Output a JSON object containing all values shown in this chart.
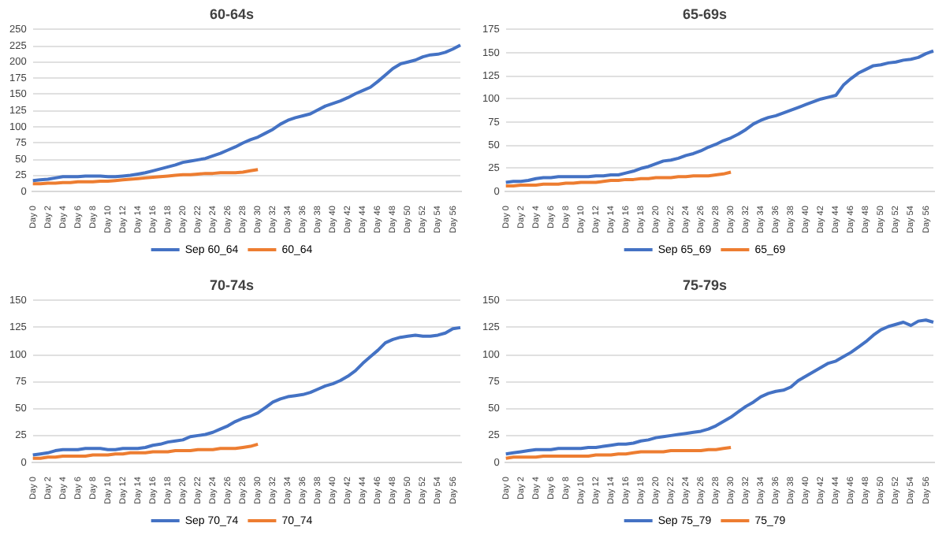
{
  "chart_data": [
    {
      "type": "line",
      "title": "60-64s",
      "categories": [
        "Day 0",
        null,
        "Day 2",
        null,
        "Day 4",
        null,
        "Day 6",
        null,
        "Day 8",
        null,
        "Day 10",
        null,
        "Day 12",
        null,
        "Day 14",
        null,
        "Day 16",
        null,
        "Day 18",
        null,
        "Day 20",
        null,
        "Day 22",
        null,
        "Day 24",
        null,
        "Day 26",
        null,
        "Day 28",
        null,
        "Day 30",
        null,
        "Day 32",
        null,
        "Day 34",
        null,
        "Day 36",
        null,
        "Day 38",
        null,
        "Day 40",
        null,
        "Day 42",
        null,
        "Day 44",
        null,
        "Day 46",
        null,
        "Day 48",
        null,
        "Day 50",
        null,
        "Day 52",
        null,
        "Day 54",
        null,
        "Day 56",
        null
      ],
      "series": [
        {
          "name": "Sep 60_64",
          "color": "#4472c4",
          "values": [
            17,
            18,
            19,
            21,
            23,
            23,
            23,
            24,
            24,
            24,
            23,
            23,
            24,
            25,
            27,
            29,
            32,
            35,
            38,
            41,
            45,
            47,
            49,
            51,
            55,
            59,
            64,
            69,
            75,
            80,
            84,
            90,
            96,
            104,
            110,
            114,
            117,
            120,
            126,
            132,
            136,
            140,
            145,
            151,
            156,
            161,
            170,
            180,
            190,
            197,
            200,
            203,
            208,
            211,
            212,
            215,
            220,
            226
          ]
        },
        {
          "name": "60_64",
          "color": "#ed7d31",
          "values": [
            12,
            12,
            13,
            13,
            14,
            14,
            15,
            15,
            15,
            16,
            16,
            17,
            18,
            19,
            20,
            21,
            22,
            23,
            24,
            25,
            26,
            26,
            27,
            28,
            28,
            29,
            29,
            29,
            30,
            32,
            34,
            null,
            null,
            null,
            null,
            null,
            null,
            null,
            null,
            null,
            null,
            null,
            null,
            null,
            null,
            null,
            null,
            null,
            null,
            null,
            null,
            null,
            null,
            null,
            null,
            null,
            null,
            null
          ]
        }
      ],
      "ylim": [
        0,
        250
      ],
      "yticks": [
        0,
        25,
        50,
        75,
        100,
        125,
        150,
        175,
        200,
        225,
        250
      ],
      "grid": "y",
      "legend": "bottom",
      "marker": "none"
    },
    {
      "type": "line",
      "title": "65-69s",
      "categories": [
        "Day 0",
        null,
        "Day 2",
        null,
        "Day 4",
        null,
        "Day 6",
        null,
        "Day 8",
        null,
        "Day 10",
        null,
        "Day 12",
        null,
        "Day 14",
        null,
        "Day 16",
        null,
        "Day 18",
        null,
        "Day 20",
        null,
        "Day 22",
        null,
        "Day 24",
        null,
        "Day 26",
        null,
        "Day 28",
        null,
        "Day 30",
        null,
        "Day 32",
        null,
        "Day 34",
        null,
        "Day 36",
        null,
        "Day 38",
        null,
        "Day 40",
        null,
        "Day 42",
        null,
        "Day 44",
        null,
        "Day 46",
        null,
        "Day 48",
        null,
        "Day 50",
        null,
        "Day 52",
        null,
        "Day 54",
        null,
        "Day 56",
        null
      ],
      "series": [
        {
          "name": "Sep 65_69",
          "color": "#4472c4",
          "values": [
            10,
            11,
            11,
            12,
            14,
            15,
            15,
            16,
            16,
            16,
            16,
            16,
            17,
            17,
            18,
            18,
            20,
            22,
            25,
            27,
            30,
            33,
            34,
            36,
            39,
            41,
            44,
            48,
            51,
            55,
            58,
            62,
            67,
            73,
            77,
            80,
            82,
            85,
            88,
            91,
            94,
            97,
            100,
            102,
            104,
            115,
            122,
            128,
            132,
            136,
            137,
            139,
            140,
            142,
            143,
            145,
            149,
            152
          ]
        },
        {
          "name": "65_69",
          "color": "#ed7d31",
          "values": [
            6,
            6,
            7,
            7,
            7,
            8,
            8,
            8,
            9,
            9,
            10,
            10,
            10,
            11,
            12,
            12,
            13,
            13,
            14,
            14,
            15,
            15,
            15,
            16,
            16,
            17,
            17,
            17,
            18,
            19,
            21,
            null,
            null,
            null,
            null,
            null,
            null,
            null,
            null,
            null,
            null,
            null,
            null,
            null,
            null,
            null,
            null,
            null,
            null,
            null,
            null,
            null,
            null,
            null,
            null,
            null,
            null,
            null
          ]
        }
      ],
      "ylim": [
        0,
        175
      ],
      "yticks": [
        0,
        25,
        50,
        75,
        100,
        125,
        150,
        175
      ],
      "grid": "y",
      "legend": "bottom",
      "marker": "none"
    },
    {
      "type": "line",
      "title": "70-74s",
      "categories": [
        "Day 0",
        null,
        "Day 2",
        null,
        "Day 4",
        null,
        "Day 6",
        null,
        "Day 8",
        null,
        "Day 10",
        null,
        "Day 12",
        null,
        "Day 14",
        null,
        "Day 16",
        null,
        "Day 18",
        null,
        "Day 20",
        null,
        "Day 22",
        null,
        "Day 24",
        null,
        "Day 26",
        null,
        "Day 28",
        null,
        "Day 30",
        null,
        "Day 32",
        null,
        "Day 34",
        null,
        "Day 36",
        null,
        "Day 38",
        null,
        "Day 40",
        null,
        "Day 42",
        null,
        "Day 44",
        null,
        "Day 46",
        null,
        "Day 48",
        null,
        "Day 50",
        null,
        "Day 52",
        null,
        "Day 54",
        null,
        "Day 56",
        null
      ],
      "series": [
        {
          "name": "Sep 70_74",
          "color": "#4472c4",
          "values": [
            7,
            8,
            9,
            11,
            12,
            12,
            12,
            13,
            13,
            13,
            12,
            12,
            13,
            13,
            13,
            14,
            16,
            17,
            19,
            20,
            21,
            24,
            25,
            26,
            28,
            31,
            34,
            38,
            41,
            43,
            46,
            51,
            56,
            59,
            61,
            62,
            63,
            65,
            68,
            71,
            73,
            76,
            80,
            85,
            92,
            98,
            104,
            111,
            114,
            116,
            117,
            118,
            117,
            117,
            118,
            120,
            124,
            125
          ]
        },
        {
          "name": "70_74",
          "color": "#ed7d31",
          "values": [
            4,
            4,
            5,
            5,
            6,
            6,
            6,
            6,
            7,
            7,
            7,
            8,
            8,
            9,
            9,
            9,
            10,
            10,
            10,
            11,
            11,
            11,
            12,
            12,
            12,
            13,
            13,
            13,
            14,
            15,
            17,
            null,
            null,
            null,
            null,
            null,
            null,
            null,
            null,
            null,
            null,
            null,
            null,
            null,
            null,
            null,
            null,
            null,
            null,
            null,
            null,
            null,
            null,
            null,
            null,
            null,
            null,
            null
          ]
        }
      ],
      "ylim": [
        0,
        150
      ],
      "yticks": [
        0,
        25,
        50,
        75,
        100,
        125,
        150
      ],
      "grid": "y",
      "legend": "bottom",
      "marker": "none"
    },
    {
      "type": "line",
      "title": "75-79s",
      "categories": [
        "Day 0",
        null,
        "Day 2",
        null,
        "Day 4",
        null,
        "Day 6",
        null,
        "Day 8",
        null,
        "Day 10",
        null,
        "Day 12",
        null,
        "Day 14",
        null,
        "Day 16",
        null,
        "Day 18",
        null,
        "Day 20",
        null,
        "Day 22",
        null,
        "Day 24",
        null,
        "Day 26",
        null,
        "Day 28",
        null,
        "Day 30",
        null,
        "Day 32",
        null,
        "Day 34",
        null,
        "Day 36",
        null,
        "Day 38",
        null,
        "Day 40",
        null,
        "Day 42",
        null,
        "Day 44",
        null,
        "Day 46",
        null,
        "Day 48",
        null,
        "Day 50",
        null,
        "Day 52",
        null,
        "Day 54",
        null,
        "Day 56",
        null
      ],
      "series": [
        {
          "name": "Sep 75_79",
          "color": "#4472c4",
          "values": [
            8,
            9,
            10,
            11,
            12,
            12,
            12,
            13,
            13,
            13,
            13,
            14,
            14,
            15,
            16,
            17,
            17,
            18,
            20,
            21,
            23,
            24,
            25,
            26,
            27,
            28,
            29,
            31,
            34,
            38,
            42,
            47,
            52,
            56,
            61,
            64,
            66,
            67,
            70,
            76,
            80,
            84,
            88,
            92,
            94,
            98,
            102,
            107,
            112,
            118,
            123,
            126,
            128,
            130,
            127,
            131,
            132,
            130
          ]
        },
        {
          "name": "75_79",
          "color": "#ed7d31",
          "values": [
            4,
            5,
            5,
            5,
            5,
            6,
            6,
            6,
            6,
            6,
            6,
            6,
            7,
            7,
            7,
            8,
            8,
            9,
            10,
            10,
            10,
            10,
            11,
            11,
            11,
            11,
            11,
            12,
            12,
            13,
            14,
            null,
            null,
            null,
            null,
            null,
            null,
            null,
            null,
            null,
            null,
            null,
            null,
            null,
            null,
            null,
            null,
            null,
            null,
            null,
            null,
            null,
            null,
            null,
            null,
            null,
            null,
            null
          ]
        }
      ],
      "ylim": [
        0,
        150
      ],
      "yticks": [
        0,
        25,
        50,
        75,
        100,
        125,
        150
      ],
      "grid": "y",
      "legend": "bottom",
      "marker": "none"
    }
  ]
}
